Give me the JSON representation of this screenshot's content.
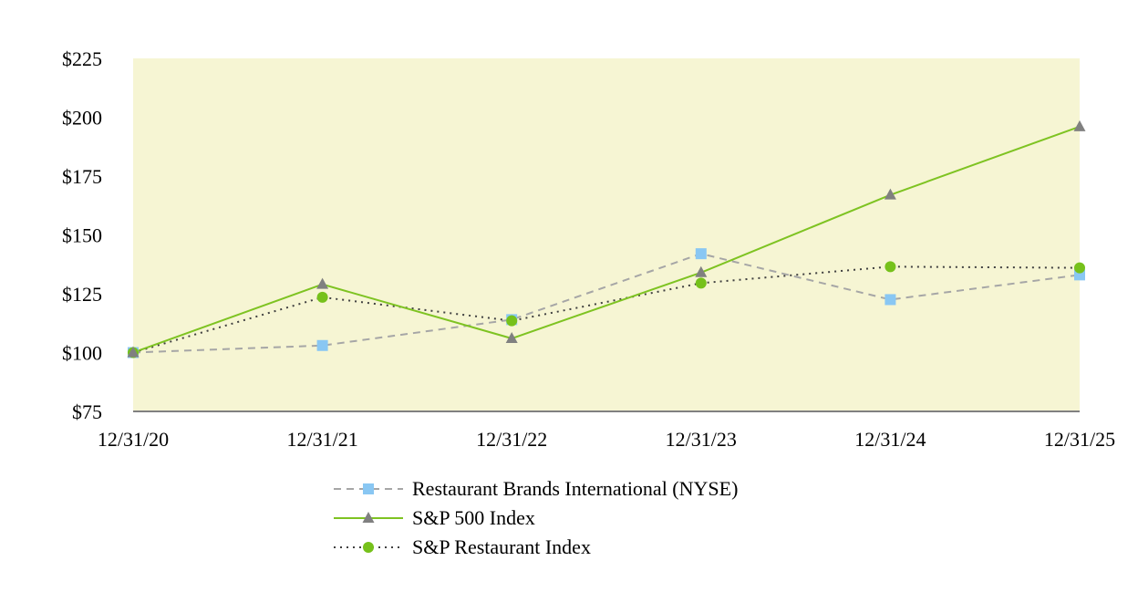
{
  "chart_data": {
    "type": "line",
    "title": "",
    "xlabel": "",
    "ylabel": "",
    "categories": [
      "12/31/20",
      "12/31/21",
      "12/31/22",
      "12/31/23",
      "12/31/24",
      "12/31/25"
    ],
    "ylim": [
      75,
      225
    ],
    "y_ticks": [
      75,
      100,
      125,
      150,
      175,
      200,
      225
    ],
    "y_tick_labels": [
      "$75",
      "$100",
      "$125",
      "$150",
      "$175",
      "$200",
      "$225"
    ],
    "plot_background": "#f6f5d3",
    "grid": false,
    "legend_position": "bottom-center",
    "series": [
      {
        "name": "Restaurant Brands International (NYSE)",
        "values": [
          100,
          103,
          114,
          142,
          122.5,
          133
        ],
        "color": "#a6a6a6",
        "marker_color": "#89c7f3",
        "line_style": "dashed",
        "marker": "square"
      },
      {
        "name": "S&P 500 Index",
        "values": [
          100,
          129,
          106,
          134,
          167,
          196
        ],
        "color": "#7ec322",
        "marker_color": "#808080",
        "line_style": "solid",
        "marker": "triangle"
      },
      {
        "name": "S&P Restaurant Index",
        "values": [
          100,
          123.5,
          113.5,
          129.5,
          136.5,
          136
        ],
        "color": "#404040",
        "marker_color": "#76c11b",
        "line_style": "dotted",
        "marker": "circle"
      }
    ]
  }
}
